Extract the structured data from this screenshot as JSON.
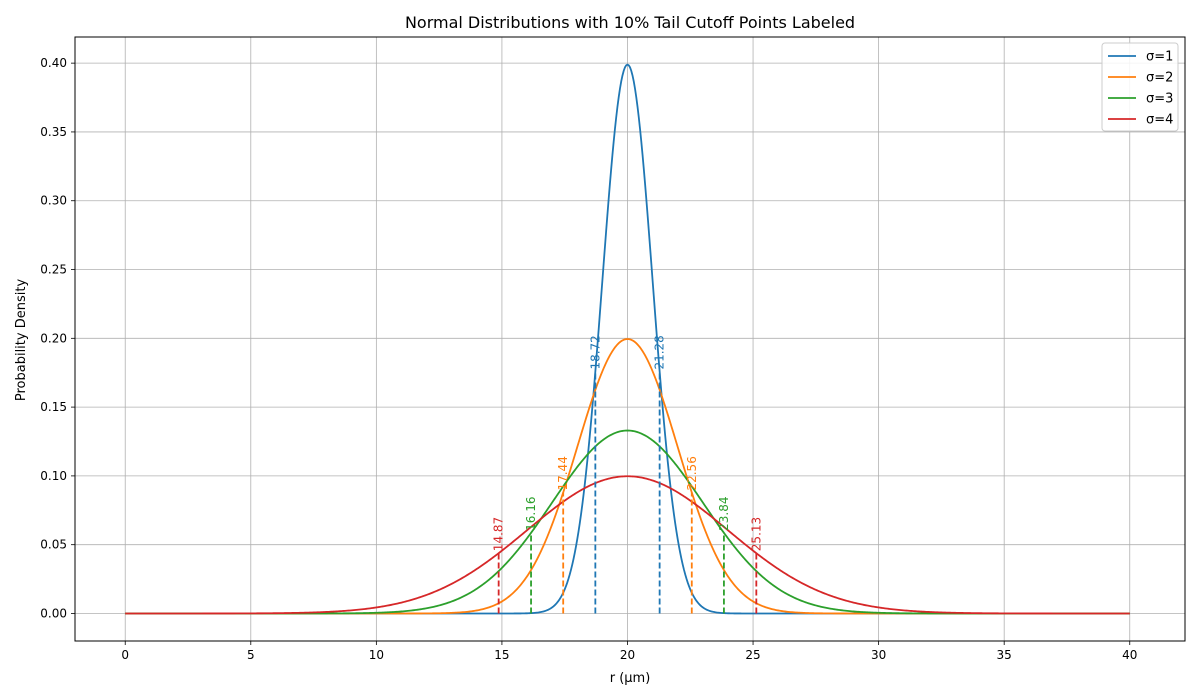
{
  "chart_data": {
    "type": "line",
    "title": "Normal Distributions with 10% Tail Cutoff Points Labeled",
    "xlabel": "r (µm)",
    "ylabel": "Probability Density",
    "xlim": [
      -2,
      42.2
    ],
    "ylim": [
      -0.02,
      0.419
    ],
    "x_ticks": [
      0,
      5,
      10,
      15,
      20,
      25,
      30,
      35,
      40
    ],
    "x_tick_labels": [
      "0",
      "5",
      "10",
      "15",
      "20",
      "25",
      "30",
      "35",
      "40"
    ],
    "y_ticks": [
      0.0,
      0.05,
      0.1,
      0.15,
      0.2,
      0.25,
      0.3,
      0.35,
      0.4
    ],
    "y_tick_labels": [
      "0.00",
      "0.05",
      "0.10",
      "0.15",
      "0.20",
      "0.25",
      "0.30",
      "0.35",
      "0.40"
    ],
    "grid": true,
    "legend_position": "top-right",
    "x_range": [
      0,
      40
    ],
    "series": [
      {
        "name": "σ=1",
        "mean": 20,
        "sigma": 1,
        "color": "#1f77b4",
        "cutoffs": [
          {
            "x": 18.72,
            "label": "18.72"
          },
          {
            "x": 21.28,
            "label": "21.28"
          }
        ]
      },
      {
        "name": "σ=2",
        "mean": 20,
        "sigma": 2,
        "color": "#ff7f0e",
        "cutoffs": [
          {
            "x": 17.44,
            "label": "17.44"
          },
          {
            "x": 22.56,
            "label": "22.56"
          }
        ]
      },
      {
        "name": "σ=3",
        "mean": 20,
        "sigma": 3,
        "color": "#2ca02c",
        "cutoffs": [
          {
            "x": 16.16,
            "label": "16.16"
          },
          {
            "x": 23.84,
            "label": "23.84"
          }
        ]
      },
      {
        "name": "σ=4",
        "mean": 20,
        "sigma": 4,
        "color": "#d62728",
        "cutoffs": [
          {
            "x": 14.87,
            "label": "14.87"
          },
          {
            "x": 25.13,
            "label": "25.13"
          }
        ]
      }
    ]
  }
}
